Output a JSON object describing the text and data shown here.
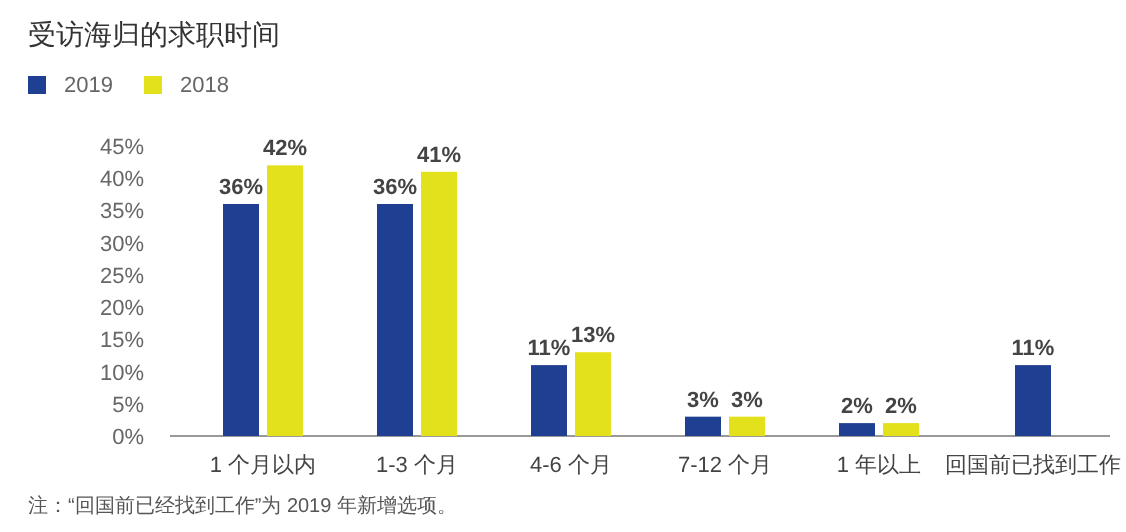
{
  "chart_data": {
    "type": "bar",
    "title": "受访海归的求职时间",
    "categories": [
      "1 个月以内",
      "1-3 个月",
      "4-6 个月",
      "7-12 个月",
      "1 年以上",
      "回国前已找到工作"
    ],
    "series": [
      {
        "name": "2019",
        "color": "#1f3f93",
        "values": [
          36,
          36,
          11,
          3,
          2,
          11
        ],
        "value_labels": [
          "36%",
          "36%",
          "11%",
          "3%",
          "2%",
          "11%"
        ]
      },
      {
        "name": "2018",
        "color": "#e3e01c",
        "values": [
          42,
          41,
          13,
          3,
          2,
          null
        ],
        "value_labels": [
          "42%",
          "41%",
          "13%",
          "3%",
          "2%",
          null
        ]
      }
    ],
    "ylim": [
      0,
      45
    ],
    "yticks": [
      {
        "value": 0,
        "label": "0%"
      },
      {
        "value": 5,
        "label": "5%"
      },
      {
        "value": 10,
        "label": "10%"
      },
      {
        "value": 15,
        "label": "15%"
      },
      {
        "value": 20,
        "label": "20%"
      },
      {
        "value": 25,
        "label": "25%"
      },
      {
        "value": 30,
        "label": "30%"
      },
      {
        "value": 35,
        "label": "35%"
      },
      {
        "value": 40,
        "label": "40%"
      },
      {
        "value": 45,
        "label": "45%"
      }
    ],
    "legend": "top left",
    "annotations": [
      "注：“回国前已经找到工作”为 2019 年新增选项。"
    ]
  }
}
